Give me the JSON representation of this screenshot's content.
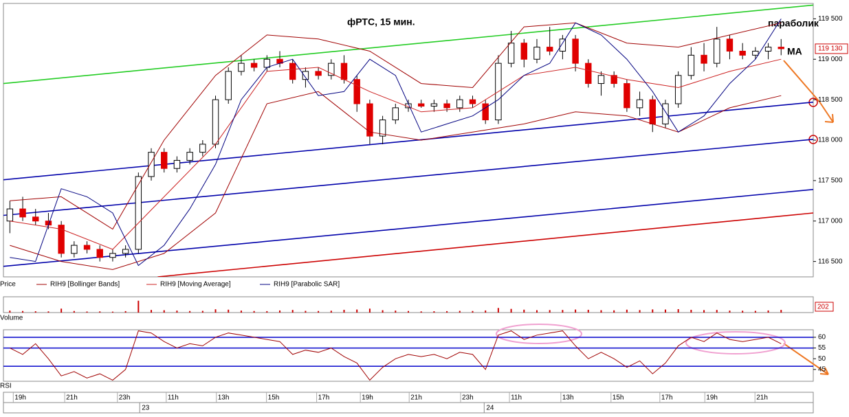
{
  "chart_data": [
    {
      "type": "candlestick",
      "title": "фРТС,  15 мин.",
      "annotations": [
        "параболик",
        "MA"
      ],
      "xlim": [
        -0.5,
        62.5
      ],
      "xticks": [
        {
          "value": 0.8,
          "label": "19h"
        },
        {
          "value": 4.8,
          "label": "21h"
        },
        {
          "value": 8.9,
          "label": "23h"
        },
        {
          "value": 12.7,
          "label": "11h"
        },
        {
          "value": 16.6,
          "label": "13h"
        },
        {
          "value": 20.5,
          "label": "15h"
        },
        {
          "value": 24.4,
          "label": "17h"
        },
        {
          "value": 27.8,
          "label": "19h"
        },
        {
          "value": 31.6,
          "label": "21h"
        },
        {
          "value": 35.6,
          "label": "23h"
        },
        {
          "value": 39.4,
          "label": "11h"
        },
        {
          "value": 43.4,
          "label": "13h"
        },
        {
          "value": 47.3,
          "label": "15h"
        },
        {
          "value": 51.1,
          "label": "17h"
        },
        {
          "value": 54.6,
          "label": "19h"
        },
        {
          "value": 58.5,
          "label": "21h"
        }
      ],
      "days": [
        {
          "value": 10.1,
          "label": "23"
        },
        {
          "value": 36.9,
          "label": "24"
        }
      ],
      "ylim": [
        116310,
        119690
      ],
      "yticks": [
        {
          "value": 116500,
          "label": "116 500"
        },
        {
          "value": 117000,
          "label": "117 000"
        },
        {
          "value": 117500,
          "label": "117 500"
        },
        {
          "value": 118000,
          "label": "118 000"
        },
        {
          "value": 118500,
          "label": "118 500"
        },
        {
          "value": 119000,
          "label": "119 000"
        },
        {
          "value": 119500,
          "label": "119 500"
        }
      ],
      "last_close_label": "119 130",
      "series": [
        {
          "name": "Price",
          "up_color": "#ffffff",
          "down_color": "#e00000",
          "x": [
            0,
            1,
            2,
            3,
            4,
            5,
            6,
            7,
            8,
            9,
            10,
            11,
            12,
            13,
            14,
            15,
            16,
            17,
            18,
            19,
            20,
            21,
            22,
            23,
            24,
            25,
            26,
            27,
            28,
            29,
            30,
            31,
            32,
            33,
            34,
            35,
            36,
            37,
            38,
            39,
            40,
            41,
            42,
            43,
            44,
            45,
            46,
            47,
            48,
            49,
            50,
            51,
            52,
            53,
            54,
            55,
            56,
            57,
            58,
            59,
            60
          ],
          "open": [
            117000,
            117150,
            117050,
            117000,
            116950,
            116600,
            116700,
            116650,
            116550,
            116600,
            116650,
            117550,
            117850,
            117650,
            117750,
            117850,
            117950,
            118500,
            118850,
            118950,
            118900,
            119000,
            118950,
            118750,
            118850,
            118800,
            118950,
            118750,
            118450,
            118050,
            118250,
            118400,
            118450,
            118420,
            118450,
            118400,
            118500,
            118450,
            118250,
            118950,
            119200,
            119000,
            119150,
            119100,
            119250,
            118950,
            118700,
            118800,
            118700,
            118400,
            118500,
            118200,
            118450,
            118800,
            119050,
            118950,
            119250,
            119100,
            119050,
            119100,
            119150
          ],
          "high": [
            117250,
            117300,
            117150,
            117100,
            117000,
            116750,
            116750,
            116700,
            116650,
            116700,
            117600,
            117900,
            117900,
            117800,
            117900,
            118000,
            118550,
            118900,
            119050,
            119000,
            119050,
            119100,
            119000,
            118900,
            118900,
            119000,
            119050,
            118800,
            118500,
            118300,
            118450,
            118500,
            118500,
            118500,
            118500,
            118550,
            118550,
            118500,
            119050,
            119350,
            119250,
            119250,
            119400,
            119300,
            119300,
            119000,
            118850,
            118850,
            118750,
            118600,
            118550,
            118500,
            118850,
            119150,
            119200,
            119400,
            119300,
            119200,
            119150,
            119200,
            119250
          ],
          "low": [
            116850,
            117000,
            116950,
            116900,
            116550,
            116550,
            116600,
            116500,
            116500,
            116550,
            116600,
            117500,
            117600,
            117600,
            117700,
            117800,
            117900,
            118450,
            118800,
            118850,
            118850,
            118900,
            118700,
            118650,
            118750,
            118750,
            118700,
            118350,
            117950,
            117950,
            118200,
            118350,
            118400,
            118350,
            118350,
            118350,
            118400,
            118200,
            118200,
            118900,
            118900,
            118950,
            119050,
            119000,
            118850,
            118650,
            118550,
            118650,
            118350,
            118300,
            118100,
            118150,
            118400,
            118750,
            118850,
            118900,
            119000,
            119000,
            119000,
            119000,
            119050
          ],
          "close": [
            117150,
            117050,
            117000,
            116950,
            116600,
            116700,
            116650,
            116550,
            116600,
            116650,
            117550,
            117850,
            117650,
            117750,
            117850,
            117950,
            118500,
            118850,
            118950,
            118900,
            119000,
            118950,
            118750,
            118850,
            118800,
            118950,
            118750,
            118450,
            118050,
            118250,
            118400,
            118450,
            118420,
            118450,
            118400,
            118500,
            118450,
            118250,
            118950,
            119200,
            119000,
            119150,
            119100,
            119250,
            118950,
            118700,
            118800,
            118700,
            118400,
            118500,
            118200,
            118450,
            118800,
            119050,
            118950,
            119250,
            119100,
            119050,
            119100,
            119150,
            119130
          ]
        },
        {
          "name": "RIH9 [Bollinger Bands]",
          "color": "#a00000",
          "x": [
            0,
            4,
            8,
            12,
            16,
            20,
            24,
            28,
            32,
            36,
            40,
            44,
            48,
            52,
            56,
            60
          ],
          "upper": [
            117250,
            117300,
            116900,
            118000,
            118800,
            119300,
            119250,
            119100,
            118700,
            118650,
            119400,
            119450,
            119200,
            119150,
            119300,
            119450
          ],
          "lower": [
            116700,
            116500,
            116400,
            116600,
            117100,
            118450,
            118600,
            118100,
            118000,
            118100,
            118200,
            118350,
            118300,
            118100,
            118400,
            118550
          ]
        },
        {
          "name": "RIH9 [Moving Average]",
          "color": "#cc2020",
          "x": [
            0,
            4,
            8,
            12,
            16,
            20,
            24,
            28,
            32,
            36,
            40,
            44,
            48,
            52,
            56,
            60
          ],
          "values": [
            117000,
            116900,
            116650,
            117300,
            117950,
            118850,
            118900,
            118600,
            118350,
            118400,
            118800,
            118900,
            118750,
            118650,
            118850,
            119000
          ]
        },
        {
          "name": "RIH9 [Parabolic SAR]",
          "color": "#000080",
          "x": [
            0,
            2,
            4,
            6,
            8,
            10,
            12,
            14,
            16,
            18,
            20,
            22,
            24,
            26,
            28,
            30,
            32,
            34,
            36,
            38,
            40,
            42,
            44,
            46,
            48,
            50,
            52,
            54,
            56,
            58,
            60
          ],
          "values": [
            116550,
            116500,
            117400,
            117300,
            117100,
            116450,
            116700,
            117150,
            117700,
            118500,
            118900,
            119000,
            118550,
            118600,
            119000,
            118800,
            118100,
            118200,
            118300,
            118500,
            118800,
            118950,
            119450,
            119300,
            119000,
            118600,
            118100,
            118300,
            118700,
            119000,
            119500
          ]
        }
      ],
      "lines": [
        {
          "color": "#22cc22",
          "x": [
            -0.5,
            62.5
          ],
          "values": [
            118700,
            119670
          ]
        },
        {
          "color": "#0000aa",
          "x": [
            -0.5,
            62.5
          ],
          "values": [
            117510,
            118470
          ]
        },
        {
          "color": "#0000aa",
          "x": [
            -0.5,
            62.5
          ],
          "values": [
            117070,
            118010
          ]
        },
        {
          "color": "#0000aa",
          "x": [
            -0.5,
            62.5
          ],
          "values": [
            116440,
            117390
          ]
        },
        {
          "color": "#cc0000",
          "x": [
            11.5,
            62.5
          ],
          "values": [
            116310,
            117100
          ]
        }
      ]
    },
    {
      "type": "bar",
      "title": "Volume",
      "color": "#cc0000",
      "ylim": [
        0,
        1200
      ],
      "values": [
        150,
        120,
        100,
        90,
        300,
        120,
        80,
        90,
        70,
        110,
        900,
        200,
        180,
        150,
        120,
        130,
        250,
        220,
        150,
        120,
        110,
        160,
        200,
        130,
        120,
        140,
        210,
        230,
        300,
        180,
        150,
        120,
        90,
        100,
        110,
        130,
        120,
        160,
        350,
        280,
        220,
        180,
        190,
        200,
        230,
        210,
        180,
        170,
        220,
        190,
        240,
        230,
        260,
        210,
        190,
        200,
        150,
        140,
        130,
        160,
        202
      ]
    },
    {
      "type": "line",
      "title": "RSI",
      "color": "#a00000",
      "level_color": "#0000cc",
      "ylim": [
        39.5,
        63.5
      ],
      "yticks": [
        45,
        50,
        55,
        60
      ],
      "levels": [
        60,
        55,
        46.5
      ],
      "values": [
        55,
        52,
        57,
        50,
        42,
        44,
        41,
        43,
        40,
        45,
        63,
        62,
        58,
        55,
        57,
        56,
        60,
        62,
        61,
        60,
        59,
        58,
        52,
        54,
        53,
        55,
        51,
        48,
        40,
        46,
        50,
        52,
        51,
        52,
        50,
        53,
        52,
        45,
        61,
        63,
        59,
        61,
        62,
        63,
        56,
        50,
        53,
        50,
        46,
        49,
        43,
        48,
        56,
        60,
        58,
        62,
        59,
        58,
        59,
        60,
        57
      ]
    }
  ]
}
